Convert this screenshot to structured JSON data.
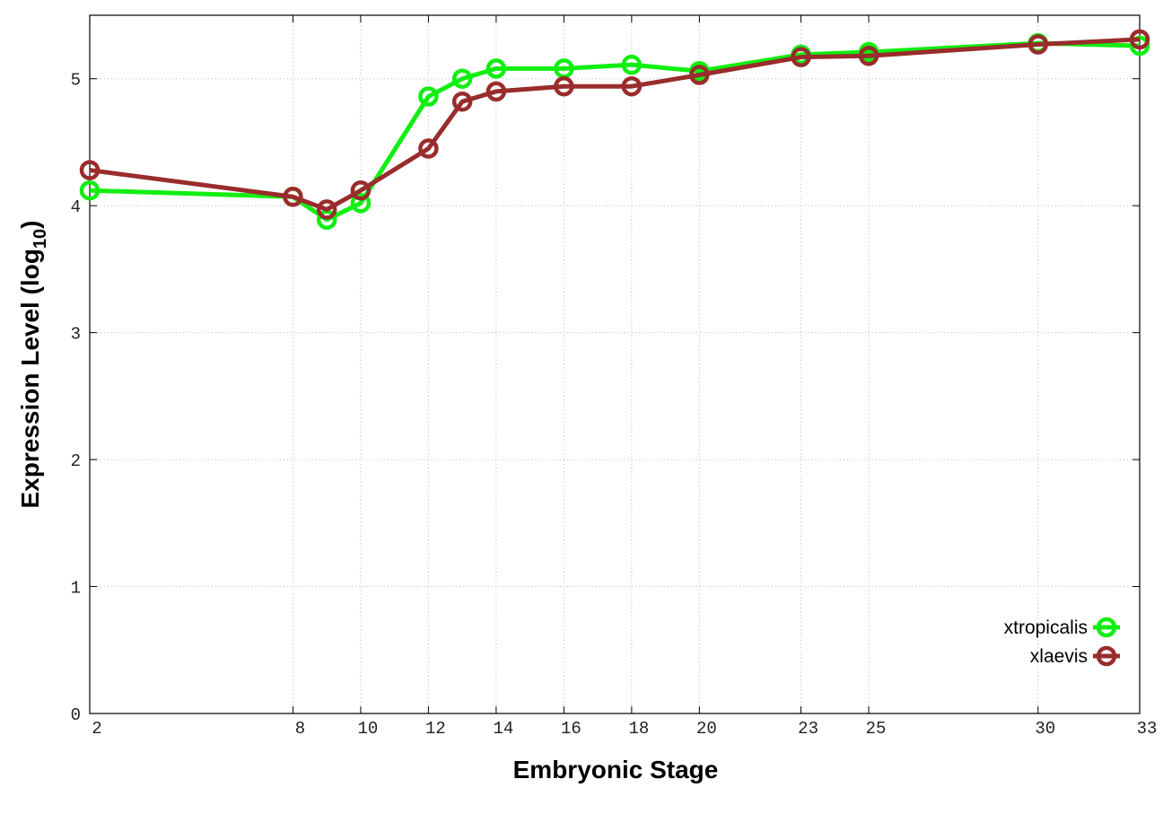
{
  "chart_data": {
    "type": "line",
    "xlabel": "Embryonic Stage",
    "ylabel": [
      "Expression Level (log",
      "10",
      ")"
    ],
    "x": [
      2,
      8,
      9,
      10,
      12,
      13,
      14,
      16,
      18,
      20,
      23,
      25,
      30,
      33
    ],
    "series": [
      {
        "name": "xtropicalis",
        "color": "#11ee11",
        "values": [
          4.12,
          4.07,
          3.89,
          4.02,
          4.86,
          5.0,
          5.08,
          5.08,
          5.11,
          5.06,
          5.19,
          5.21,
          5.28,
          5.26
        ]
      },
      {
        "name": "xlaevis",
        "color": "#992c2c",
        "values": [
          4.28,
          4.07,
          3.97,
          4.12,
          4.45,
          4.82,
          4.9,
          4.94,
          4.94,
          5.03,
          5.17,
          5.18,
          5.27,
          5.31
        ]
      }
    ],
    "xlim": [
      2,
      33
    ],
    "xticks": [
      2,
      8,
      10,
      12,
      14,
      16,
      18,
      20,
      23,
      25,
      30,
      33
    ],
    "ylim": [
      0,
      5.5
    ],
    "yticks": [
      0,
      1,
      2,
      3,
      4,
      5
    ],
    "grid": true,
    "legend": "lower right"
  }
}
